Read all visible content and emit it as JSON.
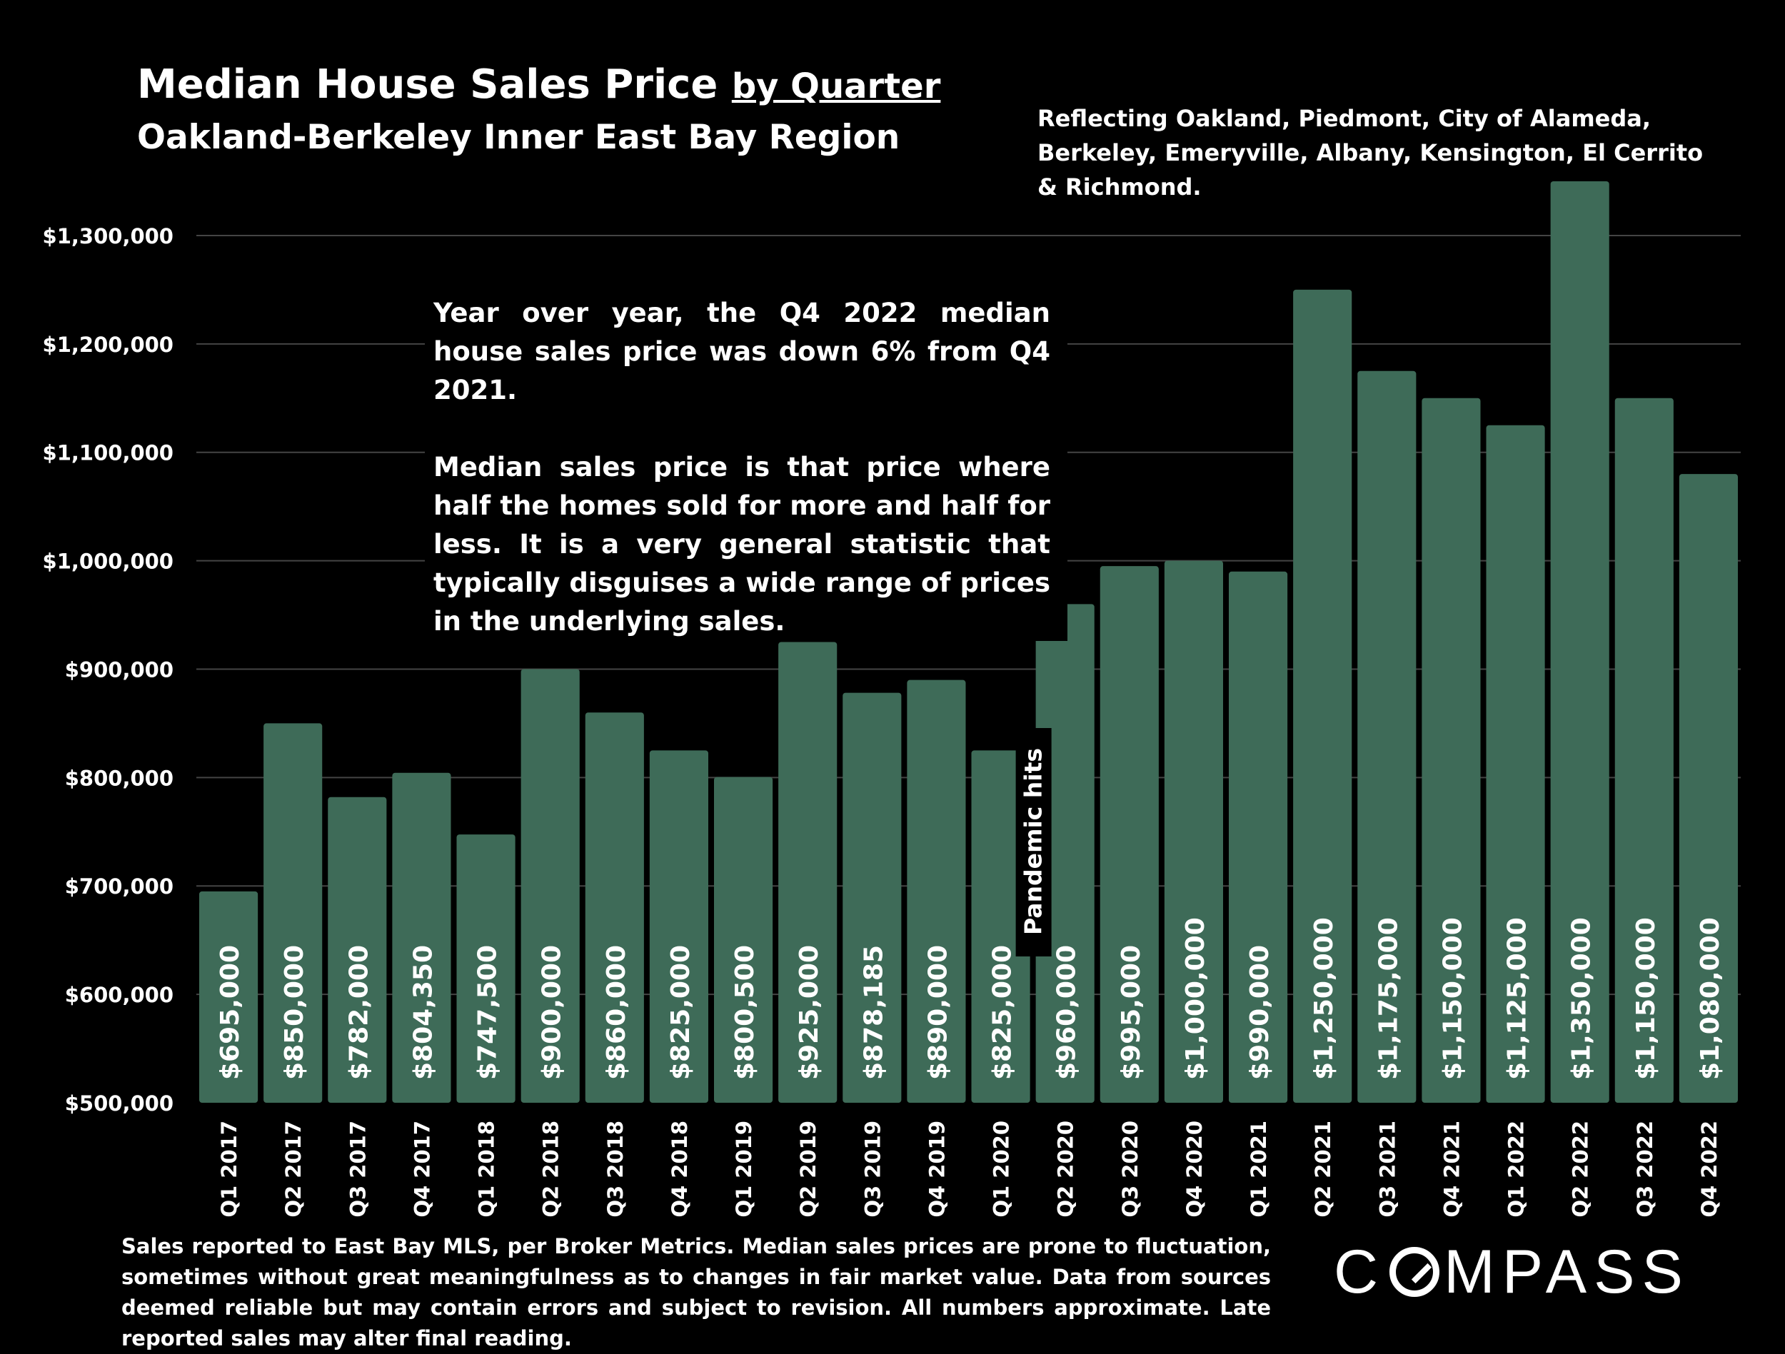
{
  "title": "Median House Sales Price",
  "title_suffix": "by Quarter",
  "subtitle": "Oakland-Berkeley Inner East Bay Region",
  "region_note": "Reflecting Oakland, Piedmont, City of Alameda, Berkeley, Emeryville, Albany, Kensington, El Cerrito & Richmond.",
  "annotation": {
    "paragraph1": "Year over year, the Q4 2022 median house sales price was down 6% from Q4 2021.",
    "paragraph2": "Median sales price is that price where half the homes sold for more and half for less. It is a very general statistic that typically disguises a wide range of prices in the underlying sales."
  },
  "footnote": "Sales reported to East Bay MLS, per Broker Metrics. Median sales prices are prone to fluctuation, sometimes without great meaningfulness as to changes in fair market value. Data from sources deemed reliable but may contain errors and subject to revision. All numbers approximate. Late reported sales may alter final reading.",
  "logo": {
    "left": "C",
    "right": "MPASS"
  },
  "colors": {
    "background": "#000000",
    "bar": "#3e6b58",
    "gridline": "#444444",
    "text": "#ffffff"
  },
  "chart_data": {
    "type": "bar",
    "title": "Median House Sales Price by Quarter",
    "xlabel": "",
    "ylabel": "",
    "ylim": [
      500000,
      1350000
    ],
    "yticks": [
      500000,
      600000,
      700000,
      800000,
      900000,
      1000000,
      1100000,
      1200000,
      1300000
    ],
    "ytick_labels": [
      "$500,000",
      "$600,000",
      "$700,000",
      "$800,000",
      "$900,000",
      "$1,000,000",
      "$1,100,000",
      "$1,200,000",
      "$1,300,000"
    ],
    "grid": true,
    "categories": [
      "Q1 2017",
      "Q2 2017",
      "Q3 2017",
      "Q4 2017",
      "Q1 2018",
      "Q2 2018",
      "Q3 2018",
      "Q4 2018",
      "Q1 2019",
      "Q2 2019",
      "Q3 2019",
      "Q4 2019",
      "Q1 2020",
      "Q2 2020",
      "Q3 2020",
      "Q4 2020",
      "Q1 2021",
      "Q2 2021",
      "Q3 2021",
      "Q4 2021",
      "Q1 2022",
      "Q2 2022",
      "Q3 2022",
      "Q4 2022"
    ],
    "values": [
      695000,
      850000,
      782000,
      804350,
      747500,
      900000,
      860000,
      825000,
      800500,
      925000,
      878185,
      890000,
      825000,
      960000,
      995000,
      1000000,
      990000,
      1250000,
      1175000,
      1150000,
      1125000,
      1350000,
      1150000,
      1080000
    ],
    "data_labels": [
      "$695,000",
      "$850,000",
      "$782,000",
      "$804,350",
      "$747,500",
      "$900,000",
      "$860,000",
      "$825,000",
      "$800,500",
      "$925,000",
      "$878,185",
      "$890,000",
      "$825,000",
      "$960,000",
      "$995,000",
      "$1,000,000",
      "$990,000",
      "$1,250,000",
      "$1,175,000",
      "$1,150,000",
      "$1,125,000",
      "$1,350,000",
      "$1,150,000",
      "$1,080,000"
    ],
    "event_marker": {
      "after_category": "Q1 2020",
      "label": "Pandemic hits"
    }
  }
}
